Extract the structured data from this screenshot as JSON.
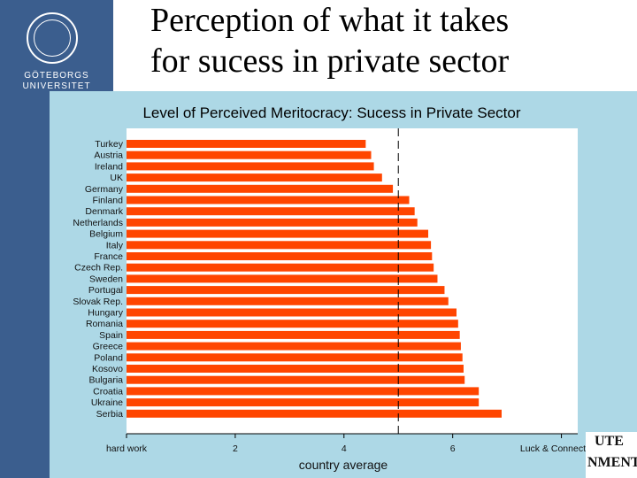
{
  "slide": {
    "title_line1": "Perception of what it takes",
    "title_line2": "for sucess in private sector"
  },
  "logo": {
    "icon": "university-seal-icon",
    "line1": "GÖTEBORGS",
    "line2": "UNIVERSITET"
  },
  "right_fragment": {
    "line1": "UTE",
    "line2": "NMENT"
  },
  "colors": {
    "panel": "#add8e6",
    "bar": "#ff4500",
    "plot_bg": "#ffffff",
    "logo_bar": "#3b5e8e"
  },
  "chart_data": {
    "type": "bar",
    "orientation": "horizontal",
    "title": "Level of Perceived Meritocracy: Sucess in Private Sector",
    "xlabel": "country average",
    "xlim": [
      0,
      8.3
    ],
    "reference_line": 5,
    "grid": false,
    "x_ticks": [
      {
        "value": 0,
        "label": "hard work"
      },
      {
        "value": 2,
        "label": "2"
      },
      {
        "value": 4,
        "label": "4"
      },
      {
        "value": 6,
        "label": "6"
      },
      {
        "value": 8,
        "label": "Luck & Connections"
      }
    ],
    "categories": [
      "Turkey",
      "Austria",
      "Ireland",
      "UK",
      "Germany",
      "Finland",
      "Denmark",
      "Netherlands",
      "Belgium",
      "Italy",
      "France",
      "Czech Rep.",
      "Sweden",
      "Portugal",
      "Slovak Rep.",
      "Hungary",
      "Romania",
      "Spain",
      "Greece",
      "Poland",
      "Kosovo",
      "Bulgaria",
      "Croatia",
      "Ukraine",
      "Serbia"
    ],
    "values": [
      4.4,
      4.5,
      4.55,
      4.7,
      4.9,
      5.2,
      5.3,
      5.35,
      5.55,
      5.6,
      5.62,
      5.65,
      5.72,
      5.85,
      5.92,
      6.07,
      6.1,
      6.13,
      6.15,
      6.18,
      6.2,
      6.22,
      6.48,
      6.48,
      6.9
    ]
  }
}
